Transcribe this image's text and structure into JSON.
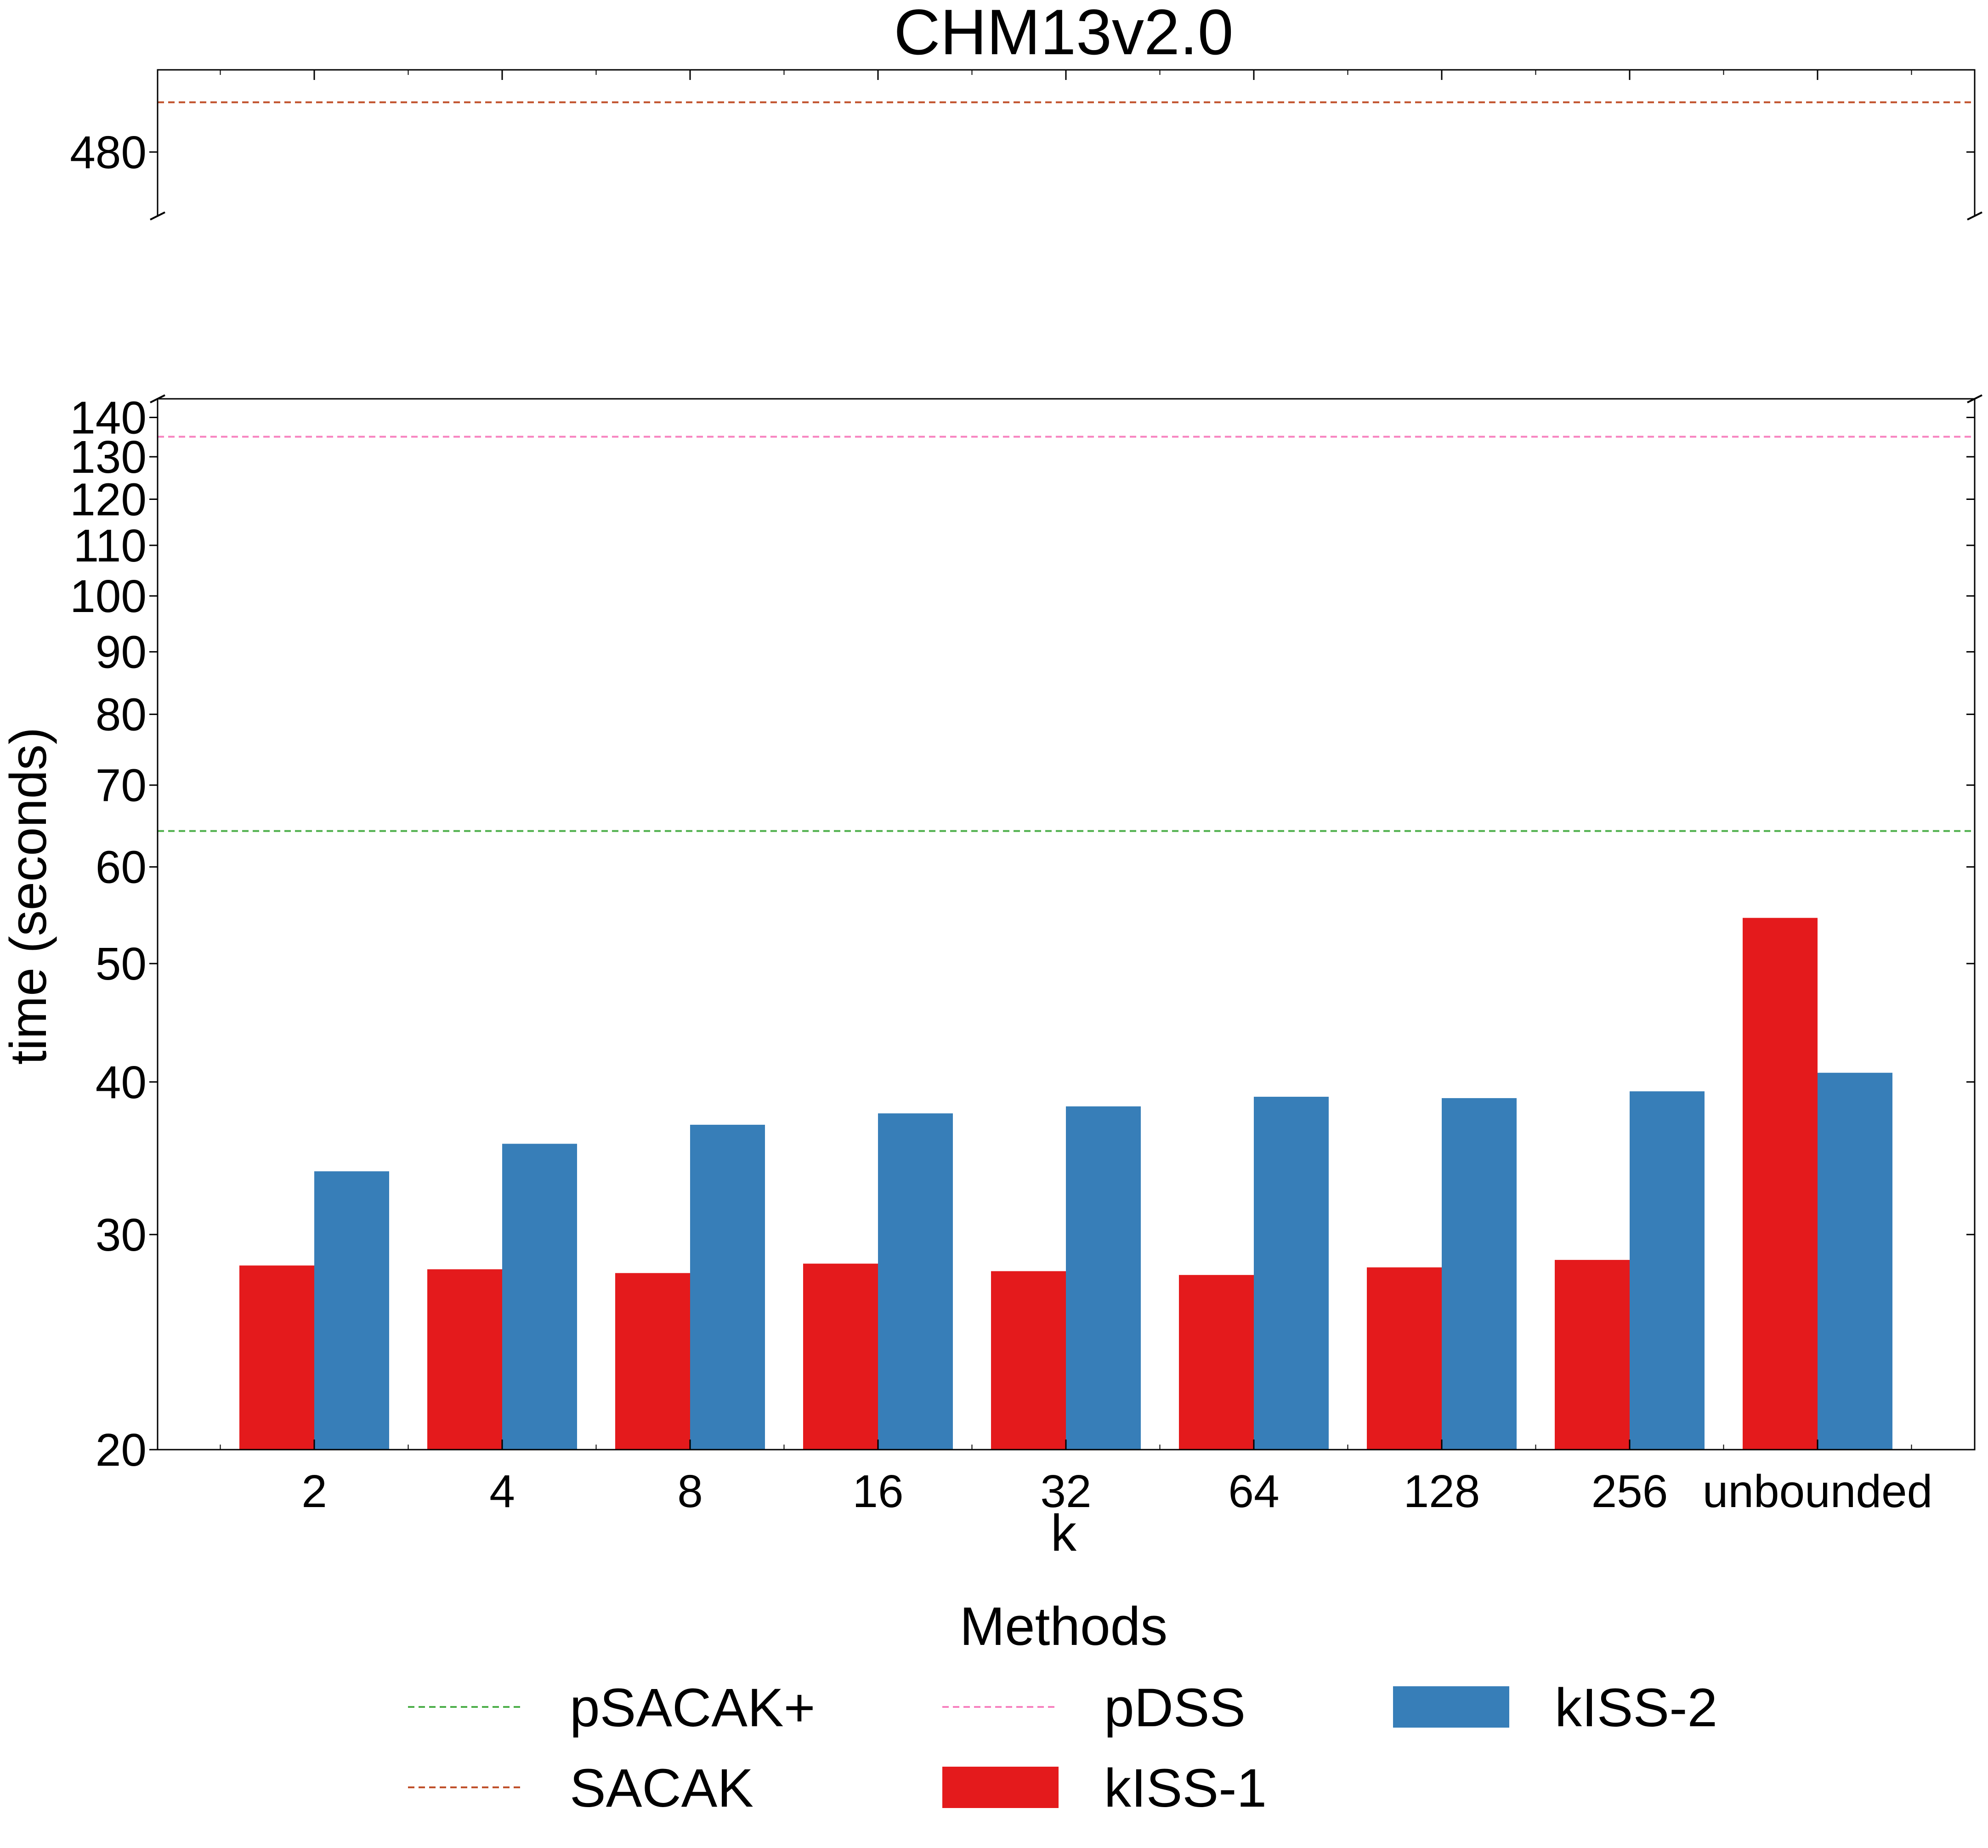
{
  "chart_data": {
    "type": "bar",
    "title": "CHM13v2.0",
    "xlabel": "k",
    "ylabel": "time (seconds)",
    "categories": [
      "2",
      "4",
      "8",
      "16",
      "32",
      "64",
      "128",
      "256",
      "unbounded"
    ],
    "y_scale": "log",
    "broken_y_axis": true,
    "ylim_lower": [
      20,
      145
    ],
    "ylim_upper": [
      465,
      500
    ],
    "yticks_lower": [
      "20",
      "30",
      "40",
      "50",
      "60",
      "70",
      "80",
      "90",
      "100",
      "110",
      "120",
      "130",
      "140"
    ],
    "yticks_upper": [
      "480"
    ],
    "series": [
      {
        "name": "kISS-1",
        "color": "#e41a1c",
        "values": [
          28.3,
          28.1,
          27.9,
          28.4,
          28.0,
          27.8,
          28.2,
          28.6,
          54.5
        ]
      },
      {
        "name": "kISS-2",
        "color": "#377eb8",
        "values": [
          33.8,
          35.6,
          36.9,
          37.7,
          38.2,
          38.9,
          38.8,
          39.3,
          40.7
        ]
      }
    ],
    "reference_lines": [
      {
        "name": "pSACAK+",
        "value": 64.2,
        "color": "#4daf4a",
        "style": "dashed"
      },
      {
        "name": "pDSS",
        "value": 135,
        "color": "#f781bf",
        "style": "dashed"
      },
      {
        "name": "SACAK",
        "value": 492,
        "color": "#c0502a",
        "style": "dashed"
      }
    ],
    "legend": {
      "title": "Methods",
      "placement": "bottom-center",
      "columns": 3,
      "entries": [
        {
          "name": "pSACAK+",
          "kind": "line",
          "color": "#4daf4a"
        },
        {
          "name": "SACAK",
          "kind": "line",
          "color": "#c0502a"
        },
        {
          "name": "pDSS",
          "kind": "line",
          "color": "#f781bf"
        },
        {
          "name": "kISS-1",
          "kind": "patch",
          "color": "#e41a1c"
        },
        {
          "name": "kISS-2",
          "kind": "patch",
          "color": "#377eb8"
        }
      ]
    },
    "grid": false
  }
}
